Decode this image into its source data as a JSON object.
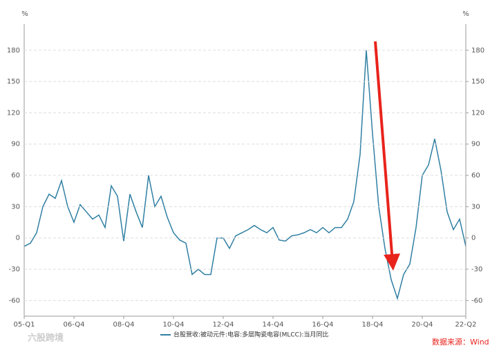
{
  "chart_data": {
    "type": "line",
    "y_label": "%",
    "y2_label": "%",
    "categories": [
      "05-Q1",
      null,
      null,
      null,
      null,
      null,
      null,
      null,
      "06-Q4",
      null,
      null,
      null,
      null,
      null,
      null,
      null,
      "08-Q4",
      null,
      null,
      null,
      null,
      null,
      null,
      null,
      "10-Q4",
      null,
      null,
      null,
      null,
      null,
      null,
      null,
      "12-Q4",
      null,
      null,
      null,
      null,
      null,
      null,
      null,
      "14-Q4",
      null,
      null,
      null,
      null,
      null,
      null,
      null,
      "16-Q4",
      null,
      null,
      null,
      null,
      null,
      null,
      null,
      "18-Q4",
      null,
      null,
      null,
      null,
      null,
      null,
      null,
      "20-Q4",
      null,
      null,
      null,
      null,
      null,
      null,
      "22-Q2"
    ],
    "series": [
      {
        "name": "台股营收:被动元件:电容:多层陶瓷电容(MLCC):当月同比",
        "color": "#2f7fa3",
        "values": [
          -8,
          -5,
          5,
          30,
          42,
          38,
          55,
          30,
          15,
          32,
          25,
          18,
          22,
          10,
          50,
          40,
          -3,
          42,
          25,
          10,
          60,
          30,
          40,
          20,
          5,
          -2,
          -5,
          -35,
          -30,
          -35,
          -35,
          0,
          0,
          -10,
          2,
          5,
          8,
          12,
          8,
          5,
          10,
          -2,
          -3,
          2,
          3,
          5,
          8,
          5,
          10,
          5,
          10,
          10,
          18,
          35,
          80,
          180,
          100,
          30,
          -10,
          -40,
          -58,
          -35,
          -25,
          10,
          60,
          70,
          95,
          65,
          25,
          8,
          18,
          -8
        ]
      }
    ],
    "ylim": [
      -75,
      205
    ],
    "yticks": [
      -60,
      -30,
      0,
      30,
      60,
      90,
      120,
      150,
      180
    ],
    "y2lim": [
      -75,
      205
    ],
    "y2ticks": [
      -60,
      -30,
      0,
      30,
      60,
      90,
      120,
      150,
      180
    ],
    "grid": true,
    "source": "数据来源：Wind",
    "watermark": "六股跨境"
  }
}
